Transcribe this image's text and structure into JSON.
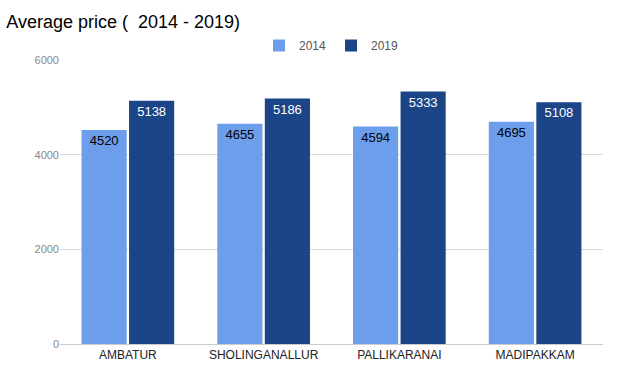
{
  "chart_data": {
    "type": "bar",
    "title": "Average price (  2014 - 2019)",
    "categories": [
      "AMBATUR",
      "SHOLINGANALLUR",
      "PALLIKARANAI",
      "MADIPAKKAM"
    ],
    "series": [
      {
        "name": "2014",
        "color": "#6d9eeb",
        "values": [
          4520,
          4655,
          4594,
          4695
        ]
      },
      {
        "name": "2019",
        "color": "#1c4587",
        "values": [
          5138,
          5186,
          5333,
          5108
        ]
      }
    ],
    "ylim": [
      0,
      6000
    ],
    "yticks": [
      0,
      2000,
      4000,
      6000
    ],
    "grid": true,
    "legend": "top",
    "data_labels": true
  }
}
